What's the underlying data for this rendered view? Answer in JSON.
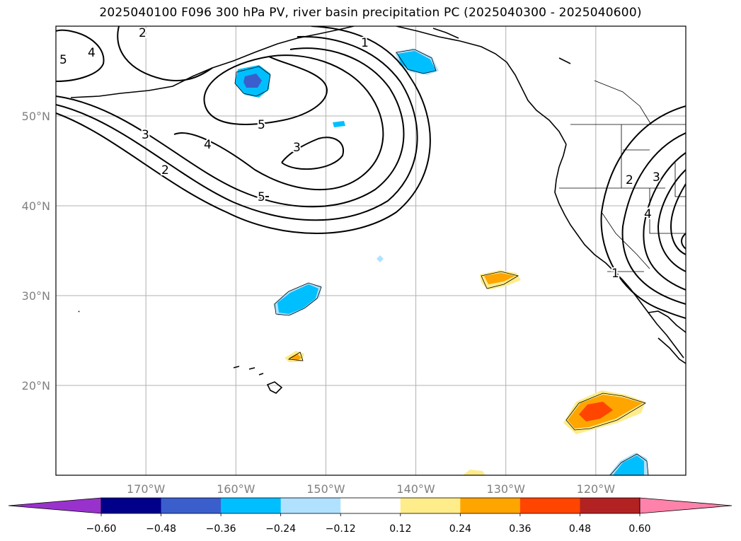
{
  "title": "2025040100 F096 300 hPa PV, river basin precipitation PC (2025040300 - 2025040600)",
  "map": {
    "lon_range": [
      -180,
      -110
    ],
    "lat_range": [
      10,
      60
    ],
    "lat_ticks": [
      {
        "value": 20,
        "label": "20°N"
      },
      {
        "value": 30,
        "label": "30°N"
      },
      {
        "value": 40,
        "label": "40°N"
      },
      {
        "value": 50,
        "label": "50°N"
      }
    ],
    "lon_ticks": [
      {
        "value": -170,
        "label": "170°W"
      },
      {
        "value": -160,
        "label": "160°W"
      },
      {
        "value": -150,
        "label": "150°W"
      },
      {
        "value": -140,
        "label": "140°W"
      },
      {
        "value": -130,
        "label": "130°W"
      },
      {
        "value": -120,
        "label": "120°W"
      }
    ],
    "grid": true,
    "grid_color": "#b0b0b0"
  },
  "pv_contour_labels": [
    "4",
    "2",
    "5",
    "1",
    "3",
    "2",
    "4",
    "3",
    "5",
    "5",
    "2",
    "3",
    "4",
    "1"
  ],
  "colorbar": {
    "levels": [
      "−0.60",
      "−0.48",
      "−0.36",
      "−0.24",
      "−0.12",
      "0.12",
      "0.24",
      "0.36",
      "0.48",
      "0.60"
    ],
    "colors": [
      "#9932cc",
      "#00008b",
      "#3a5fcd",
      "#00bfff",
      "#b0e2ff",
      "#ffffff",
      "#ffec8b",
      "#ffa500",
      "#ff4500",
      "#b22222",
      "#ff82ab"
    ],
    "extend": "both"
  }
}
